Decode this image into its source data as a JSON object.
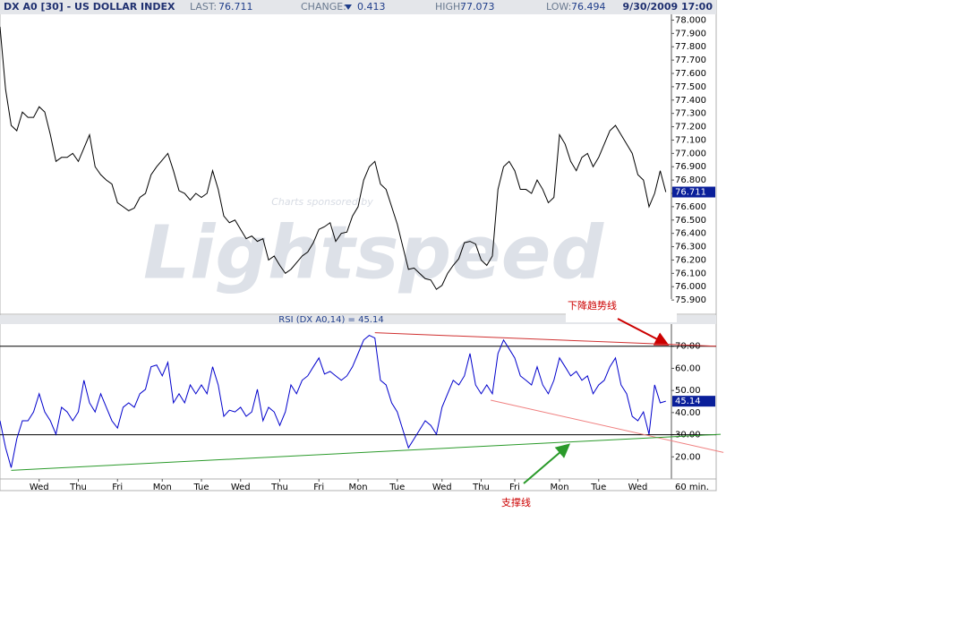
{
  "header": {
    "symbol": "DX A0 [30] - US DOLLAR INDEX",
    "last_label": "LAST:",
    "last": 76.711,
    "change_label": "CHANGE:",
    "change": 0.413,
    "high_label": "HIGH:",
    "high": 77.073,
    "low_label": "LOW:",
    "low": 76.494,
    "datetime": "9/30/2009 17:00"
  },
  "chart_data": [
    {
      "type": "line",
      "watermark_top": "Charts sponsored by",
      "watermark": "Lightspeed",
      "color": "#000000",
      "values": [
        77.95,
        77.48,
        77.21,
        77.17,
        77.31,
        77.27,
        77.27,
        77.35,
        77.31,
        77.14,
        76.94,
        76.97,
        76.97,
        77.0,
        76.94,
        77.04,
        77.14,
        76.9,
        76.84,
        76.8,
        76.77,
        76.63,
        76.6,
        76.57,
        76.59,
        76.67,
        76.7,
        76.84,
        76.9,
        76.95,
        77.0,
        76.87,
        76.72,
        76.7,
        76.65,
        76.7,
        76.67,
        76.7,
        76.87,
        76.73,
        76.53,
        76.48,
        76.5,
        76.43,
        76.36,
        76.38,
        76.34,
        76.36,
        76.2,
        76.23,
        76.16,
        76.1,
        76.13,
        76.18,
        76.23,
        76.26,
        76.33,
        76.43,
        76.45,
        76.48,
        76.34,
        76.4,
        76.41,
        76.53,
        76.6,
        76.8,
        76.9,
        76.94,
        76.77,
        76.73,
        76.6,
        76.47,
        76.3,
        76.13,
        76.14,
        76.1,
        76.06,
        76.05,
        75.98,
        76.01,
        76.1,
        76.16,
        76.21,
        76.33,
        76.34,
        76.32,
        76.2,
        76.16,
        76.23,
        76.73,
        76.9,
        76.94,
        76.87,
        76.73,
        76.73,
        76.7,
        76.8,
        76.73,
        76.63,
        76.67,
        77.14,
        77.07,
        76.94,
        76.87,
        76.97,
        77.0,
        76.9,
        76.97,
        77.07,
        77.17,
        77.21,
        77.14,
        77.07,
        77.0,
        76.84,
        76.8,
        76.6,
        76.7,
        76.87,
        76.71
      ],
      "xlim": [
        0,
        120
      ],
      "ylim": [
        75.8,
        78.03
      ],
      "yticks": [
        {
          "value": 75.9,
          "label": "75.900"
        },
        {
          "value": 76.0,
          "label": "76.000"
        },
        {
          "value": 76.1,
          "label": "76.100"
        },
        {
          "value": 76.2,
          "label": "76.200"
        },
        {
          "value": 76.3,
          "label": "76.300"
        },
        {
          "value": 76.4,
          "label": "76.400"
        },
        {
          "value": 76.5,
          "label": "76.500"
        },
        {
          "value": 76.6,
          "label": "76.600"
        },
        {
          "value": 76.7,
          "label": "76.700"
        },
        {
          "value": 76.8,
          "label": "76.800"
        },
        {
          "value": 76.9,
          "label": "76.900"
        },
        {
          "value": 77.0,
          "label": "77.000"
        },
        {
          "value": 77.1,
          "label": "77.100"
        },
        {
          "value": 77.2,
          "label": "77.200"
        },
        {
          "value": 77.3,
          "label": "77.300"
        },
        {
          "value": 77.4,
          "label": "77.400"
        },
        {
          "value": 77.5,
          "label": "77.500"
        },
        {
          "value": 77.6,
          "label": "77.600"
        },
        {
          "value": 77.7,
          "label": "77.700"
        },
        {
          "value": 77.8,
          "label": "77.800"
        },
        {
          "value": 77.9,
          "label": "77.900"
        },
        {
          "value": 78.0,
          "label": "78.000"
        }
      ]
    },
    {
      "type": "line",
      "title": "RSI (DX A0,14) = 45.14",
      "color": "#0000cc",
      "values": [
        36.3,
        24.1,
        15.1,
        28.1,
        36.3,
        36.3,
        40.3,
        48.5,
        40.3,
        36.3,
        30.2,
        42.4,
        40.3,
        36.3,
        40.3,
        54.6,
        44.4,
        40.3,
        48.5,
        42.4,
        36.3,
        33.0,
        42.4,
        44.4,
        42.4,
        48.5,
        50.5,
        60.7,
        61.5,
        56.6,
        62.7,
        44.4,
        48.5,
        44.4,
        52.5,
        48.5,
        52.5,
        48.5,
        60.7,
        52.5,
        38.3,
        41.1,
        40.3,
        42.4,
        38.3,
        40.3,
        50.5,
        36.3,
        42.4,
        40.3,
        34.2,
        40.3,
        52.5,
        48.5,
        54.6,
        56.6,
        60.7,
        64.7,
        57.4,
        58.6,
        56.6,
        54.6,
        56.6,
        60.7,
        66.7,
        72.8,
        74.9,
        73.7,
        54.6,
        52.5,
        44.4,
        40.3,
        32.2,
        24.1,
        28.1,
        32.2,
        36.3,
        34.2,
        30.2,
        42.4,
        48.5,
        54.6,
        52.5,
        56.6,
        66.7,
        52.5,
        48.5,
        52.5,
        48.5,
        66.7,
        72.8,
        68.8,
        64.7,
        56.6,
        54.6,
        52.5,
        60.7,
        52.5,
        48.5,
        54.6,
        64.7,
        60.7,
        56.6,
        58.6,
        54.6,
        56.6,
        48.5,
        52.5,
        54.6,
        60.7,
        64.7,
        52.5,
        48.5,
        38.3,
        36.3,
        40.3,
        30.2,
        52.5,
        44.4,
        45.14
      ],
      "xlim": [
        0,
        120
      ],
      "ylim": [
        10,
        80
      ],
      "yticks": [
        {
          "value": 20,
          "label": "20.00"
        },
        {
          "value": 30,
          "label": "30.00"
        },
        {
          "value": 40,
          "label": "40.00"
        },
        {
          "value": 50,
          "label": "50.00"
        },
        {
          "value": 60,
          "label": "60.00"
        },
        {
          "value": 70,
          "label": "70.00"
        }
      ],
      "levels": [
        30,
        70
      ],
      "xticks": [
        {
          "value": 7,
          "label": "Wed"
        },
        {
          "value": 14,
          "label": "Thu"
        },
        {
          "value": 21,
          "label": "Fri"
        },
        {
          "value": 29,
          "label": "Mon"
        },
        {
          "value": 36,
          "label": "Tue"
        },
        {
          "value": 43,
          "label": "Wed"
        },
        {
          "value": 50,
          "label": "Thu"
        },
        {
          "value": 57,
          "label": "Fri"
        },
        {
          "value": 64,
          "label": "Mon"
        },
        {
          "value": 71,
          "label": "Tue"
        },
        {
          "value": 79,
          "label": "Wed"
        },
        {
          "value": 86,
          "label": "Thu"
        },
        {
          "value": 92,
          "label": "Fri"
        },
        {
          "value": 100,
          "label": "Mon"
        },
        {
          "value": 107,
          "label": "Tue"
        },
        {
          "value": 114,
          "label": "Wed"
        }
      ],
      "interval": "60 min.",
      "trendlines": [
        {
          "color": "#d03030",
          "x": [
            67,
            128
          ],
          "values": [
            76.1,
            70
          ]
        },
        {
          "color": "#f08080",
          "x": [
            87.7,
            129.3
          ],
          "values": [
            45.6,
            22
          ]
        },
        {
          "color": "#2a9a2a",
          "x": [
            2,
            128.8
          ],
          "values": [
            13.9,
            30.2
          ]
        }
      ]
    }
  ],
  "annotations": [
    {
      "text": "下降趋势线",
      "color": "#cc0000"
    },
    {
      "text": "支撑线",
      "color": "#cc0000"
    }
  ]
}
